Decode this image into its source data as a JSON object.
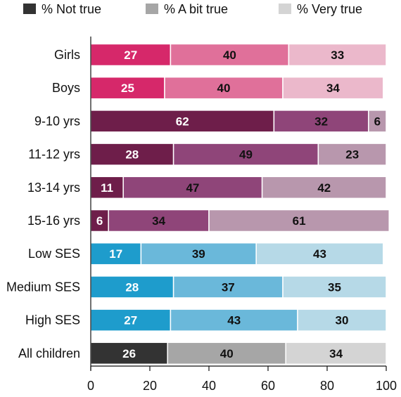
{
  "chart_data": {
    "type": "bar",
    "orientation": "horizontal",
    "stacked": true,
    "categories": [
      "Girls",
      "Boys",
      "9-10 yrs",
      "11-12 yrs",
      "13-14 yrs",
      "15-16 yrs",
      "Low  SES",
      "Medium SES",
      "High SES",
      "All children"
    ],
    "series": [
      {
        "name": "% Not true",
        "values": [
          27,
          25,
          62,
          28,
          11,
          6,
          17,
          28,
          27,
          26
        ]
      },
      {
        "name": "% A bit true",
        "values": [
          40,
          40,
          32,
          49,
          47,
          34,
          39,
          37,
          43,
          40
        ]
      },
      {
        "name": "% Very true",
        "values": [
          33,
          34,
          6,
          23,
          42,
          61,
          43,
          35,
          30,
          34
        ]
      }
    ],
    "legend": {
      "placement": "top",
      "colors": [
        "#333333",
        "#a6a6a6",
        "#d4d4d4"
      ]
    },
    "row_colors": [
      [
        "#d6286a",
        "#e0709a",
        "#ebb8cb"
      ],
      [
        "#d6286a",
        "#e0709a",
        "#ebb8cb"
      ],
      [
        "#6e1e4a",
        "#8f4579",
        "#b897ad"
      ],
      [
        "#6e1e4a",
        "#8f4579",
        "#b897ad"
      ],
      [
        "#6e1e4a",
        "#8f4579",
        "#b897ad"
      ],
      [
        "#6e1e4a",
        "#8f4579",
        "#b897ad"
      ],
      [
        "#1e9ccc",
        "#6ab8da",
        "#b6d9e7"
      ],
      [
        "#1e9ccc",
        "#6ab8da",
        "#b6d9e7"
      ],
      [
        "#1e9ccc",
        "#6ab8da",
        "#b6d9e7"
      ],
      [
        "#333333",
        "#a6a6a6",
        "#d4d4d4"
      ]
    ],
    "label_colors": [
      "#ffffff",
      "#111111",
      "#111111"
    ],
    "xlim": [
      0,
      100
    ],
    "xticks": [
      "0",
      "20",
      "40",
      "60",
      "80",
      "100"
    ],
    "grid": false
  }
}
